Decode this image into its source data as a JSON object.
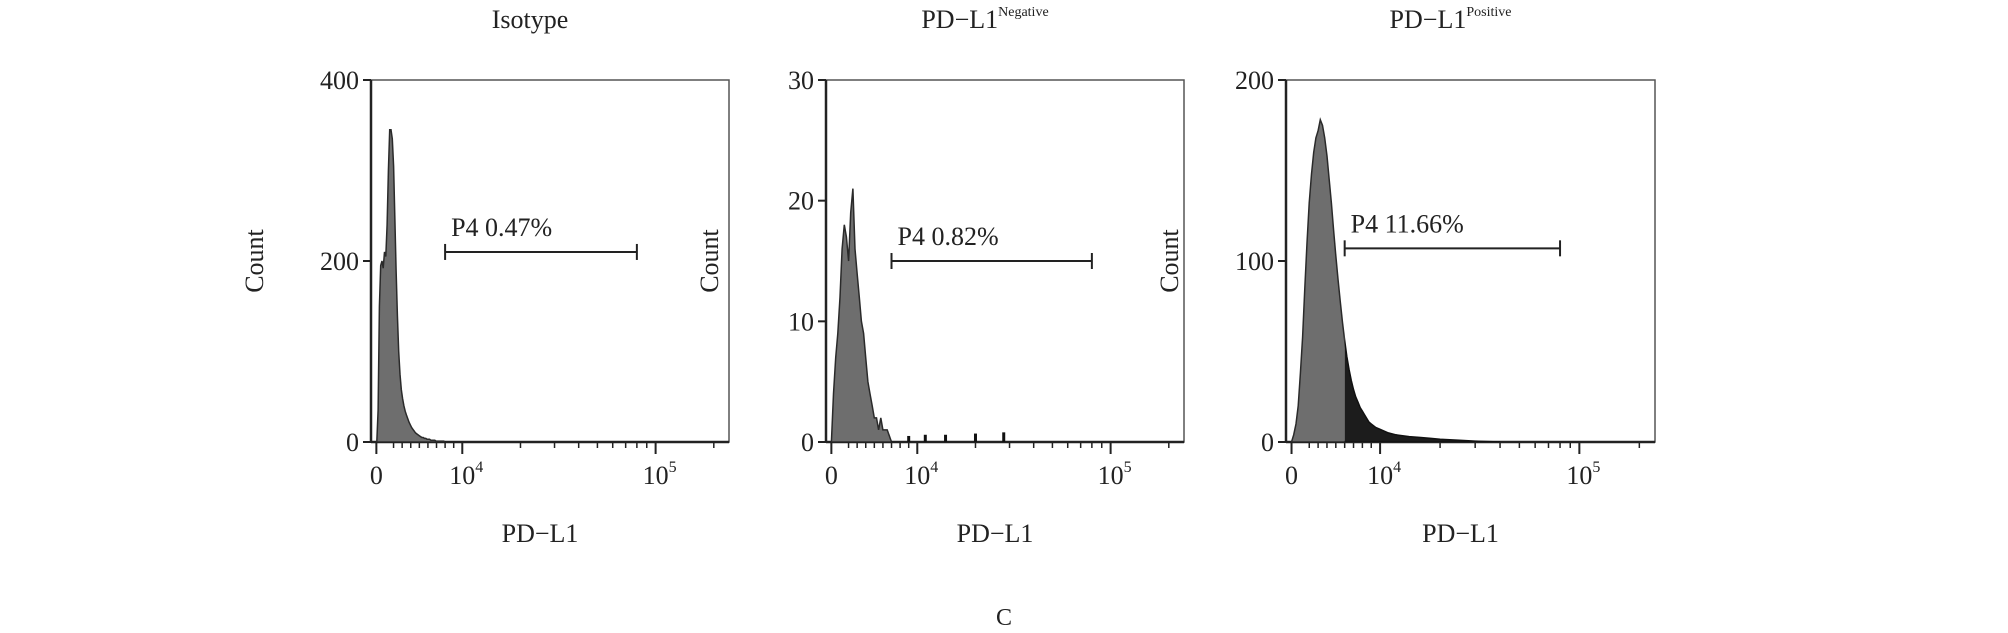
{
  "figure": {
    "caption": "C"
  },
  "chart_data": [
    {
      "type": "area",
      "title": "Isotype",
      "title_sup": "",
      "xlabel": "PD−L1",
      "ylabel": "Count",
      "x_scale": "biexponential",
      "x_ticks": [
        {
          "value": 0,
          "label": "0",
          "exp": ""
        },
        {
          "value": 10000,
          "label": "10",
          "exp": "4"
        },
        {
          "value": 100000,
          "label": "10",
          "exp": "5"
        }
      ],
      "ylim": [
        0,
        400
      ],
      "y_ticks": [
        0,
        200,
        400
      ],
      "grid": false,
      "gate": {
        "name": "P4",
        "percent": "0.47%",
        "label": "P4 0.47%",
        "x_start": 8000,
        "x_end": 80000,
        "y_level": 210
      },
      "series": [
        {
          "x": [
            50,
            200,
            350,
            500,
            650,
            800,
            950,
            1100,
            1250,
            1400,
            1550,
            1700,
            1850,
            2000,
            2150,
            2300,
            2450,
            2600,
            2750,
            2900,
            3050,
            3200,
            3350,
            3500,
            3650,
            3800,
            3950,
            4100,
            4250,
            4400,
            4550,
            4700,
            4850,
            5000,
            5150,
            5300,
            5450,
            5600,
            5750,
            5900,
            6050,
            6200,
            6350,
            6500,
            6650,
            6800,
            6950,
            7100,
            7250,
            7400,
            7550,
            7700,
            7850,
            8000
          ],
          "y": [
            0,
            35,
            150,
            195,
            200,
            192,
            210,
            205,
            240,
            300,
            345,
            345,
            335,
            305,
            250,
            190,
            140,
            100,
            75,
            58,
            48,
            40,
            34,
            30,
            26,
            22,
            19,
            16,
            14,
            12,
            10,
            9,
            8,
            7,
            6,
            5,
            5,
            4,
            4,
            3,
            3,
            3,
            2,
            2,
            2,
            2,
            1,
            1,
            1,
            1,
            1,
            1,
            1,
            0
          ]
        }
      ]
    },
    {
      "type": "area",
      "title": "PD−L1",
      "title_sup": "Negative",
      "xlabel": "PD−L1",
      "ylabel": "Count",
      "x_scale": "biexponential",
      "x_ticks": [
        {
          "value": 0,
          "label": "0",
          "exp": ""
        },
        {
          "value": 10000,
          "label": "10",
          "exp": "4"
        },
        {
          "value": 100000,
          "label": "10",
          "exp": "5"
        }
      ],
      "ylim": [
        0,
        30
      ],
      "y_ticks": [
        0,
        10,
        20,
        30
      ],
      "grid": false,
      "gate": {
        "name": "P4",
        "percent": "0.82%",
        "label": "P4 0.82%",
        "x_start": 7000,
        "x_end": 80000,
        "y_level": 15
      },
      "series": [
        {
          "x": [
            0,
            250,
            500,
            750,
            1000,
            1250,
            1500,
            1750,
            2000,
            2250,
            2500,
            2750,
            3000,
            3250,
            3500,
            3750,
            4000,
            4250,
            4500,
            4750,
            5000,
            5250,
            5500,
            5750,
            6000,
            6250,
            6500,
            6750,
            7000
          ],
          "y": [
            0,
            4,
            7,
            9,
            12,
            16,
            18,
            17,
            15,
            19,
            21,
            16,
            14,
            12,
            10,
            9,
            7,
            5,
            4,
            3,
            2,
            2,
            1,
            2,
            1,
            1,
            1,
            0.5,
            0
          ]
        }
      ],
      "sparse_events": [
        {
          "x": 9000,
          "count": 0.5
        },
        {
          "x": 11000,
          "count": 0.6
        },
        {
          "x": 14000,
          "count": 0.6
        },
        {
          "x": 20000,
          "count": 0.7
        },
        {
          "x": 28000,
          "count": 0.8
        }
      ]
    },
    {
      "type": "area",
      "title": "PD−L1",
      "title_sup": "Positive",
      "xlabel": "PD−L1",
      "ylabel": "Count",
      "x_scale": "biexponential",
      "x_ticks": [
        {
          "value": 0,
          "label": "0",
          "exp": ""
        },
        {
          "value": 10000,
          "label": "10",
          "exp": "4"
        },
        {
          "value": 100000,
          "label": "10",
          "exp": "5"
        }
      ],
      "ylim": [
        0,
        200
      ],
      "y_ticks": [
        0,
        100,
        200
      ],
      "grid": false,
      "gate": {
        "name": "P4",
        "percent": "11.66%",
        "label": "P4 11.66%",
        "x_start": 6000,
        "x_end": 80000,
        "y_level": 107
      },
      "series": [
        {
          "x": [
            0,
            250,
            500,
            750,
            1000,
            1250,
            1500,
            1750,
            2000,
            2250,
            2500,
            2750,
            3000,
            3250,
            3500,
            3750,
            4000,
            4250,
            4500,
            4750,
            5000,
            5250,
            5500,
            5750,
            6000,
            6250,
            6500,
            6750,
            7000,
            7250,
            7500,
            7750,
            8000,
            8250,
            8500,
            8750,
            9000,
            9500,
            10000,
            11000,
            12000,
            14000,
            16000,
            18000,
            20000,
            25000,
            30000,
            40000
          ],
          "y": [
            0,
            4,
            10,
            20,
            38,
            58,
            85,
            110,
            132,
            148,
            160,
            168,
            172,
            178,
            175,
            168,
            158,
            145,
            132,
            117,
            103,
            90,
            78,
            66,
            56,
            47,
            40,
            34,
            29,
            25,
            22,
            19,
            17,
            15,
            13,
            11,
            10,
            8,
            7,
            5,
            4,
            3,
            2.5,
            2,
            1.5,
            1,
            0.5,
            0
          ]
        }
      ]
    }
  ]
}
